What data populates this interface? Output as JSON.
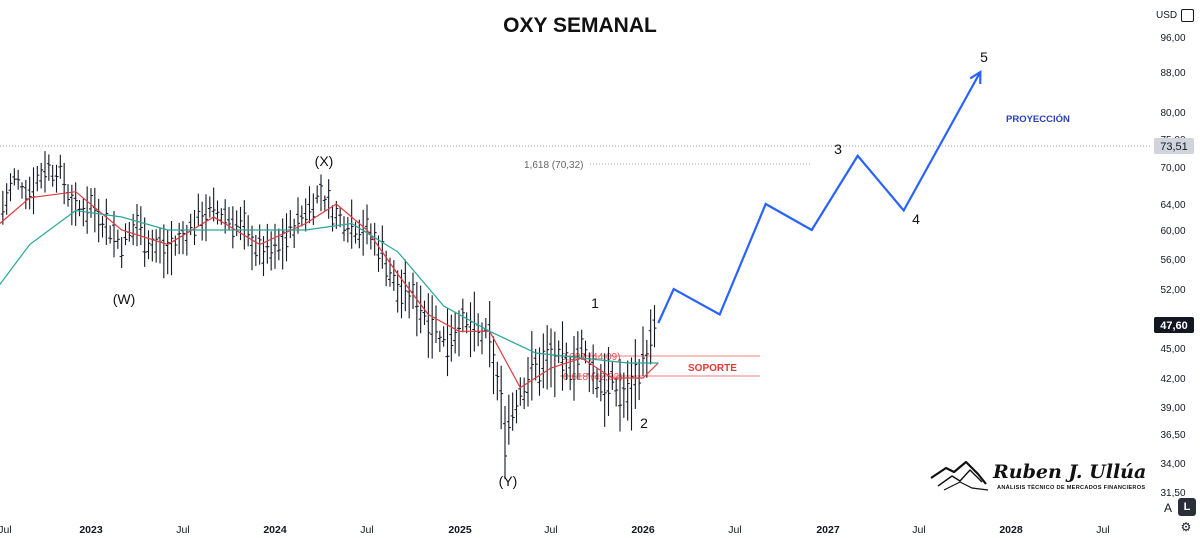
{
  "chart_data": {
    "type": "line",
    "title": "OXY SEMANAL",
    "currency": "USD",
    "y_axis_ticks": [
      "96,00",
      "88,00",
      "80,00",
      "75,00",
      "70,00",
      "64,00",
      "60,00",
      "56,00",
      "52,00",
      "48,00",
      "45,00",
      "42,00",
      "39,00",
      "36,50",
      "34,00",
      "31,50"
    ],
    "x_axis_ticks": [
      "Jul",
      "2023",
      "Jul",
      "2024",
      "Jul",
      "2025",
      "Jul",
      "2026",
      "Jul",
      "2027",
      "Jul",
      "2028",
      "Jul"
    ],
    "last_price": "47,60",
    "level_marker": "73,51",
    "fib_levels": [
      {
        "label": "1,618 (70,32)",
        "value": 70.32
      },
      {
        "label": "0,382 (44,09)",
        "value": 44.09
      },
      {
        "label": "0,618 (42,02)",
        "value": 42.02
      }
    ],
    "annotations": {
      "support": "SOPORTE",
      "projection": "PROYECCIÓN",
      "wave_labels": [
        "(W)",
        "(X)",
        "(Y)",
        "1",
        "2",
        "3",
        "4",
        "5"
      ]
    },
    "series": [
      {
        "name": "",
        "kind": "weekly_bars",
        "color": "#131722",
        "values": [
          {
            "x": "2022-06",
            "y": 60
          },
          {
            "x": "2022-07",
            "y": 62
          },
          {
            "x": "2022-08",
            "y": 68
          },
          {
            "x": "2022-09",
            "y": 66
          },
          {
            "x": "2022-10",
            "y": 70
          },
          {
            "x": "2022-11",
            "y": 69
          },
          {
            "x": "2022-12",
            "y": 63
          },
          {
            "x": "2023-01",
            "y": 64
          },
          {
            "x": "2023-02",
            "y": 61
          },
          {
            "x": "2023-03",
            "y": 58
          },
          {
            "x": "2023-04",
            "y": 61
          },
          {
            "x": "2023-05",
            "y": 58
          },
          {
            "x": "2023-06",
            "y": 57
          },
          {
            "x": "2023-07",
            "y": 59
          },
          {
            "x": "2023-08",
            "y": 62
          },
          {
            "x": "2023-09",
            "y": 63
          },
          {
            "x": "2023-10",
            "y": 62
          },
          {
            "x": "2023-11",
            "y": 60
          },
          {
            "x": "2023-12",
            "y": 57
          },
          {
            "x": "2024-01",
            "y": 57
          },
          {
            "x": "2024-02",
            "y": 60
          },
          {
            "x": "2024-03",
            "y": 63
          },
          {
            "x": "2024-04",
            "y": 66
          },
          {
            "x": "2024-05",
            "y": 62
          },
          {
            "x": "2024-06",
            "y": 61
          },
          {
            "x": "2024-07",
            "y": 60
          },
          {
            "x": "2024-08",
            "y": 57
          },
          {
            "x": "2024-09",
            "y": 52
          },
          {
            "x": "2024-10",
            "y": 51
          },
          {
            "x": "2024-11",
            "y": 49
          },
          {
            "x": "2024-12",
            "y": 46
          },
          {
            "x": "2025-01",
            "y": 48
          },
          {
            "x": "2025-02",
            "y": 47
          },
          {
            "x": "2025-03",
            "y": 46
          },
          {
            "x": "2025-04",
            "y": 37
          },
          {
            "x": "2025-05",
            "y": 41
          },
          {
            "x": "2025-06",
            "y": 43
          },
          {
            "x": "2025-07",
            "y": 44
          },
          {
            "x": "2025-08",
            "y": 43
          },
          {
            "x": "2025-09",
            "y": 45
          },
          {
            "x": "2025-10",
            "y": 42
          },
          {
            "x": "2025-11",
            "y": 41
          },
          {
            "x": "2025-12",
            "y": 40
          },
          {
            "x": "2026-01",
            "y": 44
          },
          {
            "x": "2026-02",
            "y": 47.6
          }
        ]
      },
      {
        "name": "",
        "kind": "moving_average_fast",
        "color": "#e03a3e",
        "values": [
          {
            "x": "2022-06",
            "y": 59
          },
          {
            "x": "2022-09",
            "y": 65
          },
          {
            "x": "2022-12",
            "y": 66
          },
          {
            "x": "2023-03",
            "y": 60
          },
          {
            "x": "2023-06",
            "y": 58
          },
          {
            "x": "2023-09",
            "y": 62
          },
          {
            "x": "2023-12",
            "y": 58
          },
          {
            "x": "2024-03",
            "y": 61
          },
          {
            "x": "2024-05",
            "y": 64
          },
          {
            "x": "2024-07",
            "y": 60
          },
          {
            "x": "2024-09",
            "y": 54
          },
          {
            "x": "2024-11",
            "y": 49
          },
          {
            "x": "2025-01",
            "y": 47
          },
          {
            "x": "2025-03",
            "y": 47
          },
          {
            "x": "2025-05",
            "y": 41
          },
          {
            "x": "2025-07",
            "y": 43
          },
          {
            "x": "2025-09",
            "y": 44
          },
          {
            "x": "2025-11",
            "y": 42
          },
          {
            "x": "2026-01",
            "y": 42
          },
          {
            "x": "2026-02",
            "y": 43.5
          }
        ]
      },
      {
        "name": "",
        "kind": "moving_average_slow",
        "color": "#26a69a",
        "values": [
          {
            "x": "2022-06",
            "y": 50
          },
          {
            "x": "2022-09",
            "y": 58
          },
          {
            "x": "2022-12",
            "y": 63
          },
          {
            "x": "2023-03",
            "y": 62
          },
          {
            "x": "2023-06",
            "y": 60
          },
          {
            "x": "2023-09",
            "y": 60
          },
          {
            "x": "2023-12",
            "y": 60
          },
          {
            "x": "2024-03",
            "y": 60
          },
          {
            "x": "2024-06",
            "y": 61
          },
          {
            "x": "2024-09",
            "y": 57
          },
          {
            "x": "2024-12",
            "y": 50
          },
          {
            "x": "2025-03",
            "y": 47
          },
          {
            "x": "2025-06",
            "y": 44.5
          },
          {
            "x": "2025-09",
            "y": 44
          },
          {
            "x": "2025-12",
            "y": 43.5
          },
          {
            "x": "2026-02",
            "y": 43.5
          }
        ]
      },
      {
        "name": "PROYECCIÓN",
        "kind": "projection",
        "color": "#2962ff",
        "values": [
          {
            "x": "2026-02",
            "y": 48
          },
          {
            "x": "2026-03",
            "y": 52
          },
          {
            "x": "2026-06",
            "y": 49
          },
          {
            "x": "2026-09",
            "y": 64
          },
          {
            "x": "2026-12",
            "y": 60
          },
          {
            "x": "2027-03",
            "y": 72
          },
          {
            "x": "2027-06",
            "y": 63
          },
          {
            "x": "2027-11",
            "y": 88
          }
        ]
      }
    ],
    "grid": false,
    "legend": "none"
  },
  "ui": {
    "currency_label": "USD",
    "auto_scale": "A",
    "log_scale": "L"
  },
  "brand": {
    "name": "Ruben J. Ullúa",
    "tagline": "ANÁLISIS TÉCNICO DE MERCADOS FINANCIEROS"
  }
}
